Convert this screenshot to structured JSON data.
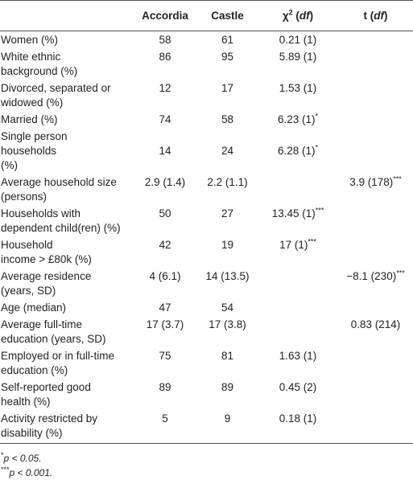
{
  "table": {
    "header": [
      [
        {
          "text": "Accordia"
        }
      ],
      [
        {
          "text": "Castle"
        }
      ],
      [
        {
          "text": "χ"
        },
        {
          "text": "2",
          "sup": true
        },
        {
          "text": " ("
        },
        {
          "text": "df",
          "italic": true
        },
        {
          "text": ")"
        }
      ],
      [
        {
          "text": "t ("
        },
        {
          "text": "df",
          "italic": true
        },
        {
          "text": ")"
        }
      ]
    ],
    "rows": [
      [
        [
          "Women (%)"
        ],
        "58",
        "61",
        "0.21 (1)",
        null
      ],
      [
        [
          "White ethnic",
          "background (%)"
        ],
        "86",
        "95",
        "5.89 (1)",
        null
      ],
      [
        [
          "Divorced, separated or",
          "widowed (%)"
        ],
        "12",
        "17",
        "1.53 (1)",
        null
      ],
      [
        [
          "Married (%)"
        ],
        "74",
        "58",
        "6.23 (1)*",
        null
      ],
      [
        [
          "Single person",
          "households",
          "(%)"
        ],
        "14",
        "24",
        "6.28 (1)*",
        null
      ],
      [
        [
          "Average household size",
          "(persons)"
        ],
        "2.9 (1.4)",
        "2.2 (1.1)",
        null,
        "3.9 (178)***"
      ],
      [
        [
          "Households with dependent child(ren) (%)"
        ],
        "50",
        "27",
        "13.45 (1)***",
        null
      ],
      [
        [
          "Household",
          "income > £80k (%)"
        ],
        "42",
        "19",
        "17 (1)***",
        null
      ],
      [
        [
          "Average residence",
          "(years, SD)"
        ],
        "4 (6.1)",
        "14 (13.5)",
        null,
        "−8.1 (230)***"
      ],
      [
        [
          "Age (median)"
        ],
        "47",
        "54",
        null,
        null
      ],
      [
        [
          "Average full-time",
          "education (years, SD)"
        ],
        "17 (3.7)",
        "17 (3.8)",
        null,
        "0.83 (214)"
      ],
      [
        [
          "Employed or in full-time",
          "education (%)"
        ],
        "75",
        "81",
        "1.63 (1)",
        null
      ],
      [
        [
          "Self-reported good",
          "health (%)"
        ],
        "89",
        "89",
        "0.45 (2)",
        null
      ],
      [
        [
          "Activity restricted by",
          "disability (%)"
        ],
        "5",
        "9",
        "0.18 (1)",
        null
      ]
    ],
    "footnotes": [
      [
        {
          "text": "*",
          "sup": true
        },
        {
          "text": "p < 0.05.",
          "italic": true
        }
      ],
      [
        {
          "text": "***",
          "sup": true
        },
        {
          "text": "p < 0.001.",
          "italic": true
        }
      ]
    ]
  }
}
